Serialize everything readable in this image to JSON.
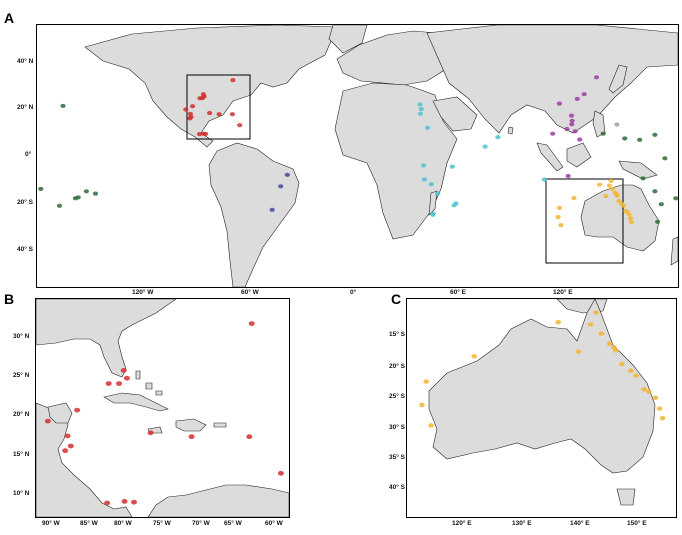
{
  "panels": {
    "a": {
      "letter": "A"
    },
    "b": {
      "letter": "B"
    },
    "c": {
      "letter": "C"
    }
  },
  "map_a": {
    "y_ticks": [
      "40° N",
      "20° N",
      "0°",
      "20° S",
      "40° S"
    ],
    "x_ticks": [
      "120° W",
      "60° W",
      "0°",
      "60° E",
      "120° E"
    ]
  },
  "map_b": {
    "y_ticks": [
      "30° N",
      "25° N",
      "20° N",
      "15° N",
      "10° N"
    ],
    "x_ticks": [
      "90° W",
      "85° W",
      "80° W",
      "75° W",
      "70° W",
      "65° W",
      "60° W"
    ]
  },
  "map_c": {
    "y_ticks": [
      "15° S",
      "20° S",
      "25° S",
      "30° S",
      "35° S",
      "40° S"
    ],
    "x_ticks": [
      "120° E",
      "130° E",
      "140° E",
      "150° E"
    ]
  },
  "colors": {
    "land": "#dcdcdc",
    "caribbean": "#d32f2f",
    "pacific_islands": "#2e6b3a",
    "east_africa": "#4cc3d0",
    "southeast_asia": "#9c3fa3",
    "australia": "#f2b632",
    "brazil": "#3f4a9c",
    "unknown": "#9e9e9e"
  },
  "occurrences": {
    "caribbean": [
      [
        -64.7,
        32.3
      ],
      [
        -80.5,
        25.3
      ],
      [
        -81.5,
        24.6
      ],
      [
        -82.8,
        24.6
      ],
      [
        -80.9,
        26.3
      ],
      [
        -86.8,
        21.2
      ],
      [
        -88.0,
        17.9
      ],
      [
        -87.6,
        16.6
      ],
      [
        -88.3,
        16.0
      ],
      [
        -83.0,
        9.3
      ],
      [
        -80.8,
        9.5
      ],
      [
        -79.6,
        9.4
      ],
      [
        -65.0,
        17.8
      ],
      [
        -61.0,
        13.1
      ],
      [
        -77.5,
        18.3
      ],
      [
        -72.3,
        17.8
      ],
      [
        -90.5,
        19.8
      ]
    ],
    "pacific_islands": [
      [
        -157.8,
        21.3
      ],
      [
        -159.7,
        -21.2
      ],
      [
        -149.5,
        -17.6
      ],
      [
        -140.0,
        -16.0
      ],
      [
        -145.0,
        -15.0
      ],
      [
        -151.0,
        -18.0
      ],
      [
        138.2,
        9.5
      ],
      [
        150.0,
        7.5
      ],
      [
        158.2,
        6.9
      ],
      [
        166.5,
        9.0
      ],
      [
        160.0,
        -9.5
      ],
      [
        166.5,
        -15.0
      ],
      [
        170.0,
        -20.5
      ],
      [
        178.0,
        -18.0
      ],
      [
        172.0,
        -1.0
      ],
      [
        168.0,
        -28.0
      ],
      [
        -170.0,
        -14.0
      ],
      [
        -176.0,
        -19.0
      ]
    ],
    "east_africa": [
      [
        39.7,
        -4.0
      ],
      [
        40.2,
        -10.0
      ],
      [
        44.0,
        -12.0
      ],
      [
        47.5,
        -16.0
      ],
      [
        45.0,
        -24.5
      ],
      [
        38.0,
        18.0
      ],
      [
        42.0,
        12.0
      ],
      [
        55.5,
        -4.5
      ],
      [
        57.5,
        -20.2
      ],
      [
        73.5,
        4.0
      ],
      [
        80.5,
        8.0
      ],
      [
        56.5,
        -21.0
      ],
      [
        106.0,
        -10.0
      ],
      [
        37.8,
        22.0
      ],
      [
        38.5,
        20.0
      ],
      [
        44.8,
        -25.0
      ]
    ],
    "southeast_asia": [
      [
        127.8,
        26.3
      ],
      [
        124.0,
        24.3
      ],
      [
        121.2,
        15.0
      ],
      [
        114.2,
        22.3
      ],
      [
        122.8,
        10.5
      ],
      [
        125.3,
        7.0
      ],
      [
        118.3,
        11.5
      ],
      [
        121.0,
        13.5
      ],
      [
        120.8,
        17.2
      ],
      [
        110.5,
        9.5
      ],
      [
        134.5,
        33.5
      ],
      [
        119.0,
        -8.5
      ]
    ],
    "brazil": [
      [
        -34.9,
        -8.0
      ],
      [
        -38.5,
        -12.9
      ],
      [
        -43.2,
        -22.9
      ]
    ],
    "unknown": [
      [
        145.7,
        13.4
      ]
    ],
    "australia": [
      [
        145.8,
        -16.9
      ],
      [
        146.8,
        -19.2
      ],
      [
        149.2,
        -21.1
      ],
      [
        150.5,
        -23.4
      ],
      [
        152.4,
        -24.8
      ],
      [
        153.1,
        -26.6
      ],
      [
        153.6,
        -28.2
      ],
      [
        142.5,
        -10.6
      ],
      [
        141.6,
        -12.6
      ],
      [
        143.4,
        -14.1
      ],
      [
        139.6,
        -17.1
      ],
      [
        136.2,
        -12.2
      ],
      [
        122.2,
        -17.9
      ],
      [
        114.2,
        -22.1
      ],
      [
        115.0,
        -29.4
      ],
      [
        113.5,
        -26.0
      ],
      [
        144.8,
        -15.8
      ],
      [
        145.5,
        -16.4
      ],
      [
        148.3,
        -20.3
      ],
      [
        151.3,
        -23.8
      ]
    ]
  }
}
